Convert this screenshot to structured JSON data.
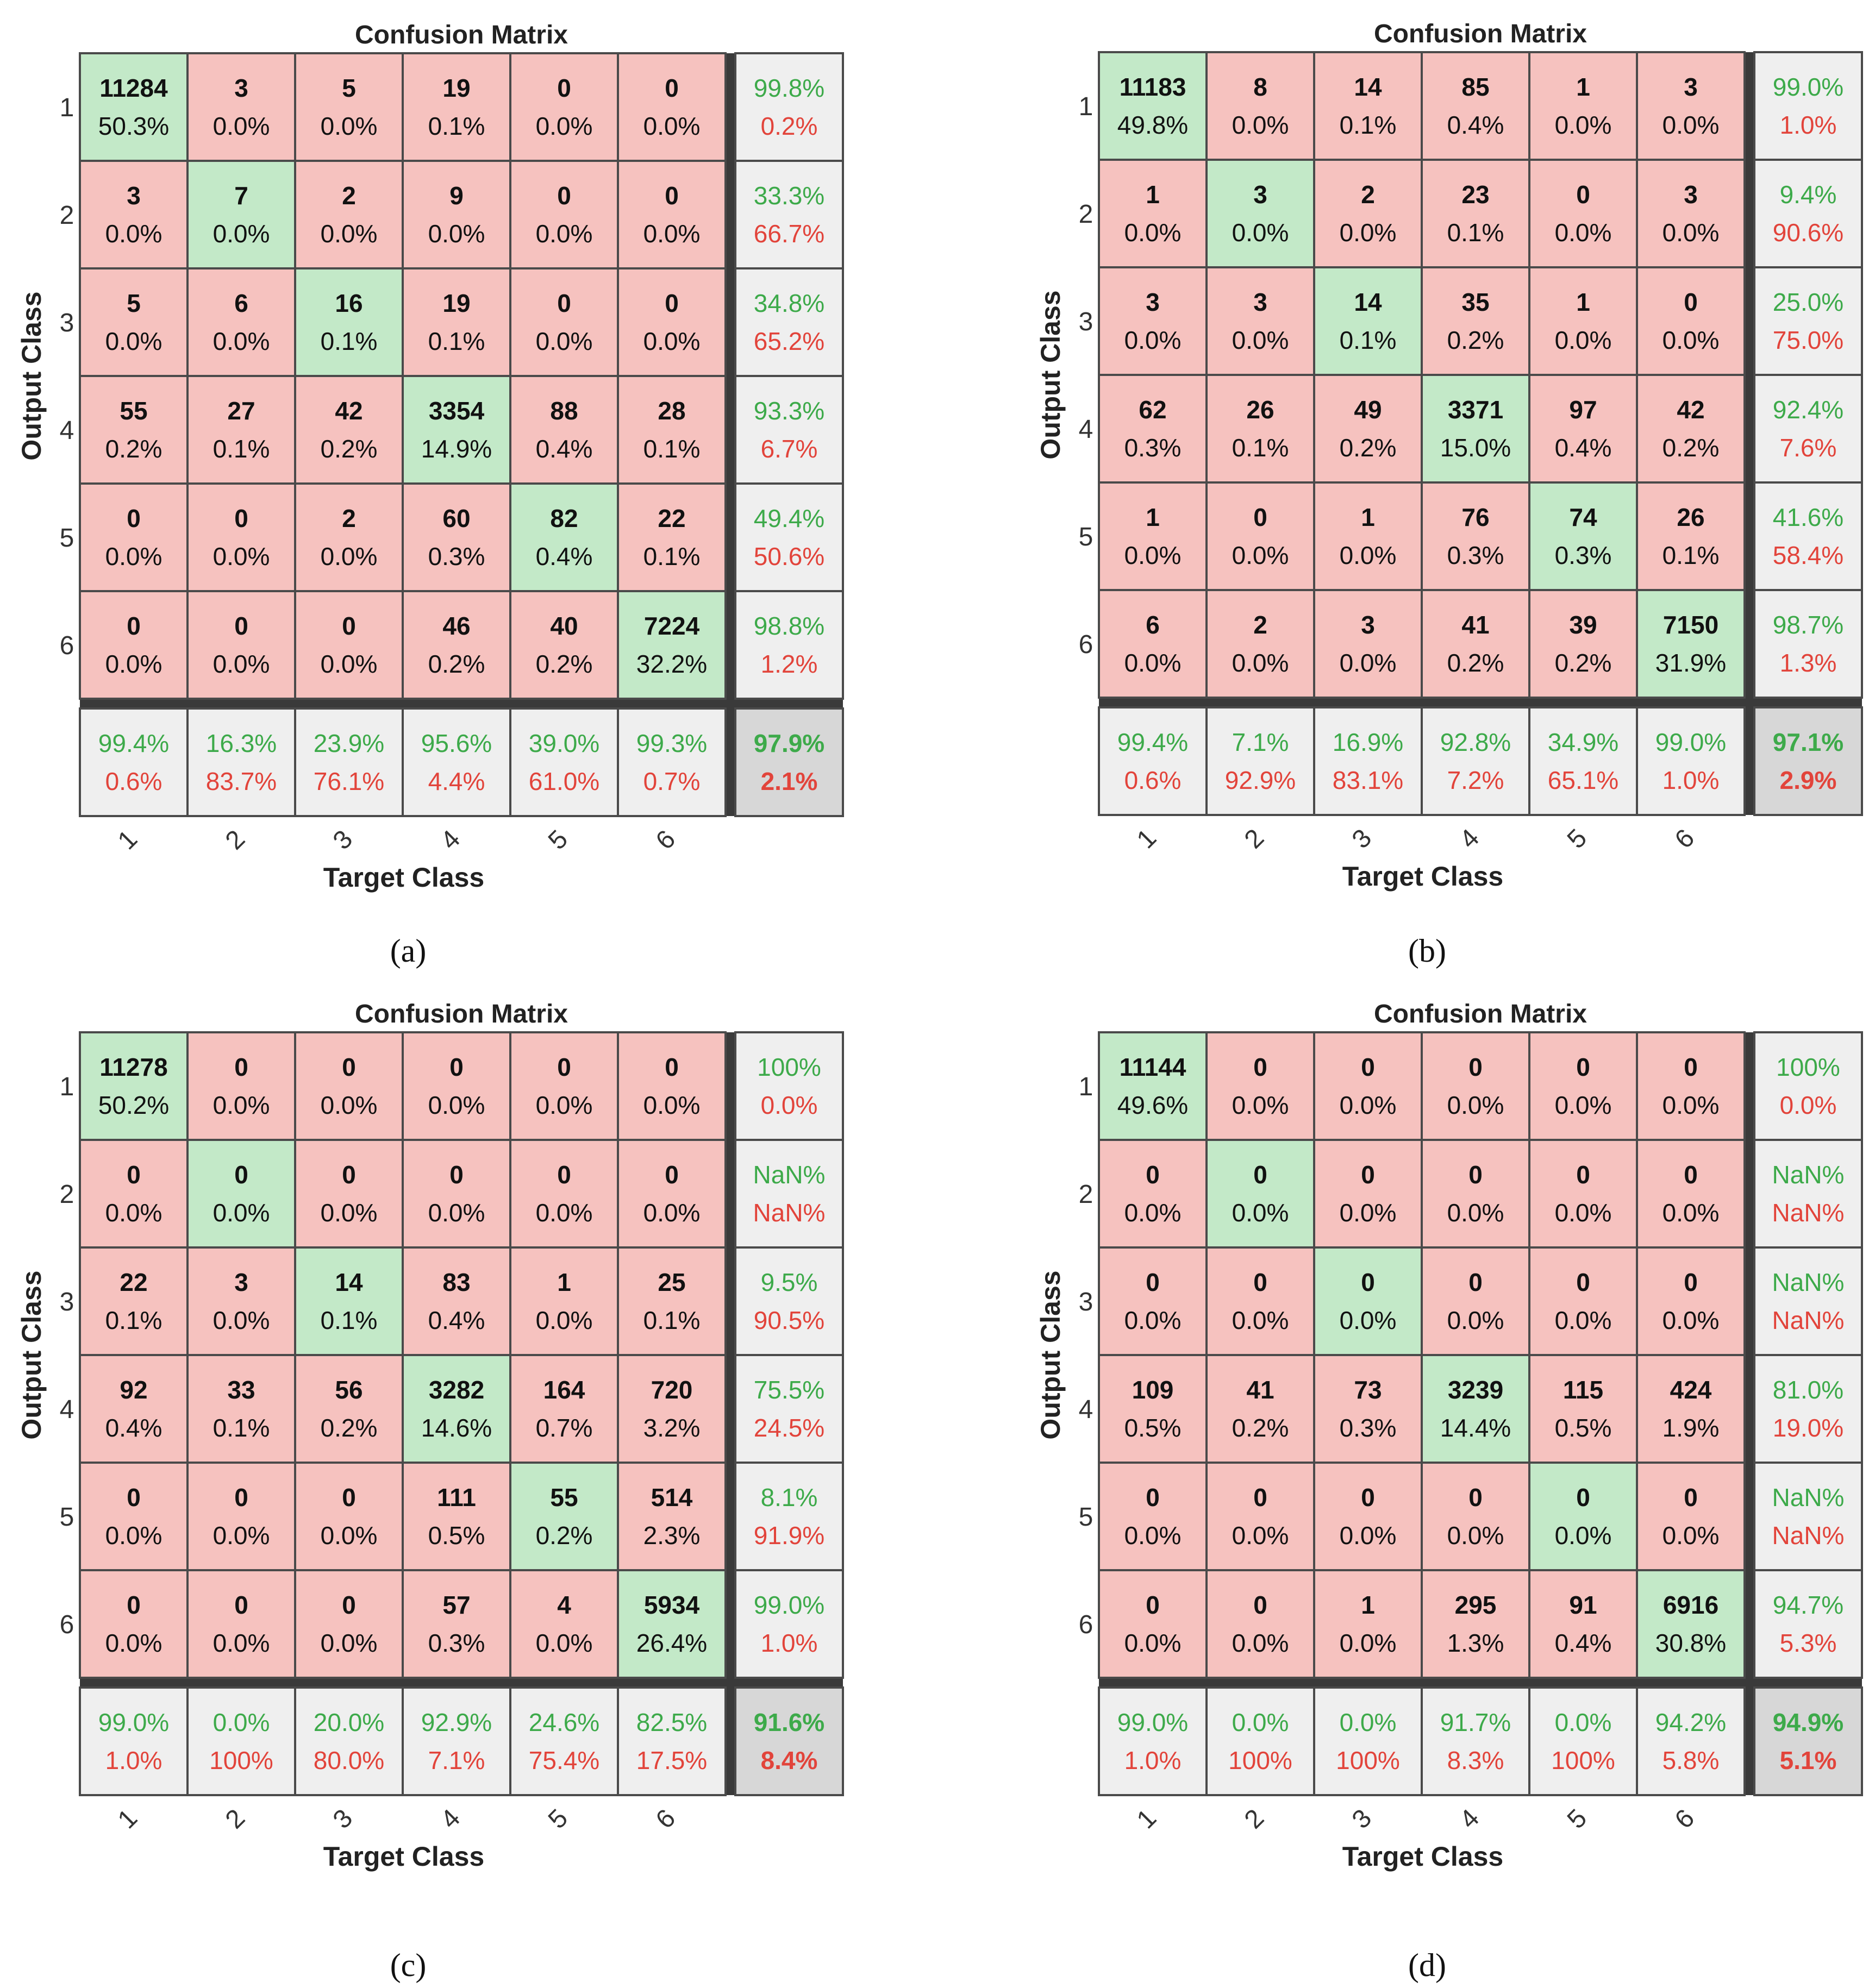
{
  "colors": {
    "correct_fill": "#c3e9c8",
    "wrong_fill": "#f6c2bf",
    "summary_fill": "#efefef",
    "total_fill": "#d7d7d7",
    "good_text": "#3daa4a",
    "bad_text": "#e2443b",
    "grid": "#4a4a4a"
  },
  "chart_data": [
    {
      "type": "heatmap",
      "panel": "a",
      "caption": "(a)",
      "title": "Confusion Matrix",
      "xlabel": "Target Class",
      "ylabel": "Output Class",
      "classes": [
        "1",
        "2",
        "3",
        "4",
        "5",
        "6"
      ],
      "counts": [
        [
          11284,
          3,
          5,
          19,
          0,
          0
        ],
        [
          3,
          7,
          2,
          9,
          0,
          0
        ],
        [
          5,
          6,
          16,
          19,
          0,
          0
        ],
        [
          55,
          27,
          42,
          3354,
          88,
          28
        ],
        [
          0,
          0,
          2,
          60,
          82,
          22
        ],
        [
          0,
          0,
          0,
          46,
          40,
          7224
        ]
      ],
      "percents": [
        [
          "50.3%",
          "0.0%",
          "0.0%",
          "0.1%",
          "0.0%",
          "0.0%"
        ],
        [
          "0.0%",
          "0.0%",
          "0.0%",
          "0.0%",
          "0.0%",
          "0.0%"
        ],
        [
          "0.0%",
          "0.0%",
          "0.1%",
          "0.1%",
          "0.0%",
          "0.0%"
        ],
        [
          "0.2%",
          "0.1%",
          "0.2%",
          "14.9%",
          "0.4%",
          "0.1%"
        ],
        [
          "0.0%",
          "0.0%",
          "0.0%",
          "0.3%",
          "0.4%",
          "0.1%"
        ],
        [
          "0.0%",
          "0.0%",
          "0.0%",
          "0.2%",
          "0.2%",
          "32.2%"
        ]
      ],
      "row_summary": [
        [
          "99.8%",
          "0.2%"
        ],
        [
          "33.3%",
          "66.7%"
        ],
        [
          "34.8%",
          "65.2%"
        ],
        [
          "93.3%",
          "6.7%"
        ],
        [
          "49.4%",
          "50.6%"
        ],
        [
          "98.8%",
          "1.2%"
        ]
      ],
      "col_summary": [
        [
          "99.4%",
          "0.6%"
        ],
        [
          "16.3%",
          "83.7%"
        ],
        [
          "23.9%",
          "76.1%"
        ],
        [
          "95.6%",
          "4.4%"
        ],
        [
          "39.0%",
          "61.0%"
        ],
        [
          "99.3%",
          "0.7%"
        ]
      ],
      "total": [
        "97.9%",
        "2.1%"
      ]
    },
    {
      "type": "heatmap",
      "panel": "b",
      "caption": "(b)",
      "title": "Confusion Matrix",
      "xlabel": "Target Class",
      "ylabel": "Output Class",
      "classes": [
        "1",
        "2",
        "3",
        "4",
        "5",
        "6"
      ],
      "counts": [
        [
          11183,
          8,
          14,
          85,
          1,
          3
        ],
        [
          1,
          3,
          2,
          23,
          0,
          3
        ],
        [
          3,
          3,
          14,
          35,
          1,
          0
        ],
        [
          62,
          26,
          49,
          3371,
          97,
          42
        ],
        [
          1,
          0,
          1,
          76,
          74,
          26
        ],
        [
          6,
          2,
          3,
          41,
          39,
          7150
        ]
      ],
      "percents": [
        [
          "49.8%",
          "0.0%",
          "0.1%",
          "0.4%",
          "0.0%",
          "0.0%"
        ],
        [
          "0.0%",
          "0.0%",
          "0.0%",
          "0.1%",
          "0.0%",
          "0.0%"
        ],
        [
          "0.0%",
          "0.0%",
          "0.1%",
          "0.2%",
          "0.0%",
          "0.0%"
        ],
        [
          "0.3%",
          "0.1%",
          "0.2%",
          "15.0%",
          "0.4%",
          "0.2%"
        ],
        [
          "0.0%",
          "0.0%",
          "0.0%",
          "0.3%",
          "0.3%",
          "0.1%"
        ],
        [
          "0.0%",
          "0.0%",
          "0.0%",
          "0.2%",
          "0.2%",
          "31.9%"
        ]
      ],
      "row_summary": [
        [
          "99.0%",
          "1.0%"
        ],
        [
          "9.4%",
          "90.6%"
        ],
        [
          "25.0%",
          "75.0%"
        ],
        [
          "92.4%",
          "7.6%"
        ],
        [
          "41.6%",
          "58.4%"
        ],
        [
          "98.7%",
          "1.3%"
        ]
      ],
      "col_summary": [
        [
          "99.4%",
          "0.6%"
        ],
        [
          "7.1%",
          "92.9%"
        ],
        [
          "16.9%",
          "83.1%"
        ],
        [
          "92.8%",
          "7.2%"
        ],
        [
          "34.9%",
          "65.1%"
        ],
        [
          "99.0%",
          "1.0%"
        ]
      ],
      "total": [
        "97.1%",
        "2.9%"
      ]
    },
    {
      "type": "heatmap",
      "panel": "c",
      "caption": "(c)",
      "title": "Confusion Matrix",
      "xlabel": "Target Class",
      "ylabel": "Output Class",
      "classes": [
        "1",
        "2",
        "3",
        "4",
        "5",
        "6"
      ],
      "counts": [
        [
          11278,
          0,
          0,
          0,
          0,
          0
        ],
        [
          0,
          0,
          0,
          0,
          0,
          0
        ],
        [
          22,
          3,
          14,
          83,
          1,
          25
        ],
        [
          92,
          33,
          56,
          3282,
          164,
          720
        ],
        [
          0,
          0,
          0,
          111,
          55,
          514
        ],
        [
          0,
          0,
          0,
          57,
          4,
          5934
        ]
      ],
      "percents": [
        [
          "50.2%",
          "0.0%",
          "0.0%",
          "0.0%",
          "0.0%",
          "0.0%"
        ],
        [
          "0.0%",
          "0.0%",
          "0.0%",
          "0.0%",
          "0.0%",
          "0.0%"
        ],
        [
          "0.1%",
          "0.0%",
          "0.1%",
          "0.4%",
          "0.0%",
          "0.1%"
        ],
        [
          "0.4%",
          "0.1%",
          "0.2%",
          "14.6%",
          "0.7%",
          "3.2%"
        ],
        [
          "0.0%",
          "0.0%",
          "0.0%",
          "0.5%",
          "0.2%",
          "2.3%"
        ],
        [
          "0.0%",
          "0.0%",
          "0.0%",
          "0.3%",
          "0.0%",
          "26.4%"
        ]
      ],
      "row_summary": [
        [
          "100%",
          "0.0%"
        ],
        [
          "NaN%",
          "NaN%"
        ],
        [
          "9.5%",
          "90.5%"
        ],
        [
          "75.5%",
          "24.5%"
        ],
        [
          "8.1%",
          "91.9%"
        ],
        [
          "99.0%",
          "1.0%"
        ]
      ],
      "col_summary": [
        [
          "99.0%",
          "1.0%"
        ],
        [
          "0.0%",
          "100%"
        ],
        [
          "20.0%",
          "80.0%"
        ],
        [
          "92.9%",
          "7.1%"
        ],
        [
          "24.6%",
          "75.4%"
        ],
        [
          "82.5%",
          "17.5%"
        ]
      ],
      "total": [
        "91.6%",
        "8.4%"
      ]
    },
    {
      "type": "heatmap",
      "panel": "d",
      "caption": "(d)",
      "title": "Confusion Matrix",
      "xlabel": "Target Class",
      "ylabel": "Output Class",
      "classes": [
        "1",
        "2",
        "3",
        "4",
        "5",
        "6"
      ],
      "counts": [
        [
          11144,
          0,
          0,
          0,
          0,
          0
        ],
        [
          0,
          0,
          0,
          0,
          0,
          0
        ],
        [
          0,
          0,
          0,
          0,
          0,
          0
        ],
        [
          109,
          41,
          73,
          3239,
          115,
          424
        ],
        [
          0,
          0,
          0,
          0,
          0,
          0
        ],
        [
          0,
          0,
          1,
          295,
          91,
          6916
        ]
      ],
      "percents": [
        [
          "49.6%",
          "0.0%",
          "0.0%",
          "0.0%",
          "0.0%",
          "0.0%"
        ],
        [
          "0.0%",
          "0.0%",
          "0.0%",
          "0.0%",
          "0.0%",
          "0.0%"
        ],
        [
          "0.0%",
          "0.0%",
          "0.0%",
          "0.0%",
          "0.0%",
          "0.0%"
        ],
        [
          "0.5%",
          "0.2%",
          "0.3%",
          "14.4%",
          "0.5%",
          "1.9%"
        ],
        [
          "0.0%",
          "0.0%",
          "0.0%",
          "0.0%",
          "0.0%",
          "0.0%"
        ],
        [
          "0.0%",
          "0.0%",
          "0.0%",
          "1.3%",
          "0.4%",
          "30.8%"
        ]
      ],
      "row_summary": [
        [
          "100%",
          "0.0%"
        ],
        [
          "NaN%",
          "NaN%"
        ],
        [
          "NaN%",
          "NaN%"
        ],
        [
          "81.0%",
          "19.0%"
        ],
        [
          "NaN%",
          "NaN%"
        ],
        [
          "94.7%",
          "5.3%"
        ]
      ],
      "col_summary": [
        [
          "99.0%",
          "1.0%"
        ],
        [
          "0.0%",
          "100%"
        ],
        [
          "0.0%",
          "100%"
        ],
        [
          "91.7%",
          "8.3%"
        ],
        [
          "0.0%",
          "100%"
        ],
        [
          "94.2%",
          "5.8%"
        ]
      ],
      "total": [
        "94.9%",
        "5.1%"
      ]
    }
  ]
}
